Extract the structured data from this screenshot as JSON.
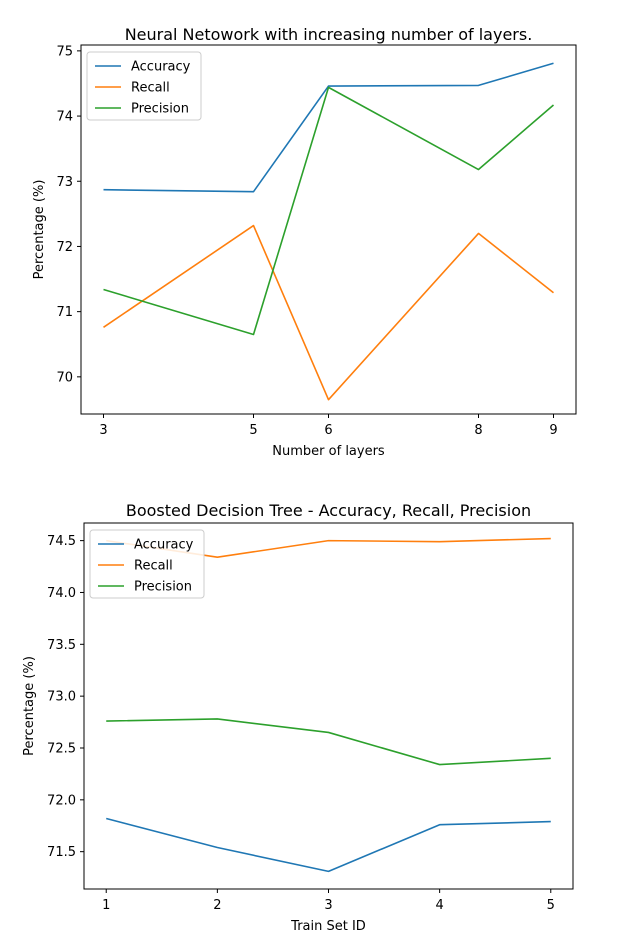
{
  "chart_data": [
    {
      "type": "line",
      "title": "Neural Netowork with increasing number of layers.",
      "xlabel": "Number of layers",
      "ylabel": "Percentage (%)",
      "x": [
        3,
        5,
        6,
        8,
        9
      ],
      "xticks": [
        3,
        5,
        6,
        8,
        9
      ],
      "yticks": [
        70,
        71,
        72,
        73,
        74,
        75
      ],
      "xlim": [
        2.7,
        9.3
      ],
      "ylim": [
        69.43,
        75.09
      ],
      "grid": false,
      "legend_position": "top-left",
      "series": [
        {
          "name": "Accuracy",
          "color": "#1f77b4",
          "values": [
            72.87,
            72.84,
            74.46,
            74.47,
            74.81
          ]
        },
        {
          "name": "Recall",
          "color": "#ff7f0e",
          "values": [
            70.76,
            72.32,
            69.65,
            72.2,
            71.29
          ]
        },
        {
          "name": "Precision",
          "color": "#2ca02c",
          "values": [
            71.34,
            70.65,
            74.44,
            73.18,
            74.17
          ]
        }
      ]
    },
    {
      "type": "line",
      "title": "Boosted Decision Tree - Accuracy, Recall, Precision",
      "xlabel": "Train Set ID",
      "ylabel": "Percentage (%)",
      "x": [
        1,
        2,
        3,
        4,
        5
      ],
      "xticks": [
        1,
        2,
        3,
        4,
        5
      ],
      "yticks": [
        71.5,
        72.0,
        72.5,
        73.0,
        73.5,
        74.0,
        74.5
      ],
      "ytick_labels": [
        "71.5",
        "72.0",
        "72.5",
        "73.0",
        "73.5",
        "74.0",
        "74.5"
      ],
      "xlim": [
        0.8,
        5.2
      ],
      "ylim": [
        71.14,
        74.67
      ],
      "grid": false,
      "legend_position": "top-left",
      "series": [
        {
          "name": "Accuracy",
          "color": "#1f77b4",
          "values": [
            71.82,
            71.54,
            71.31,
            71.76,
            71.79
          ]
        },
        {
          "name": "Recall",
          "color": "#ff7f0e",
          "values": [
            74.5,
            74.34,
            74.5,
            74.49,
            74.52
          ]
        },
        {
          "name": "Precision",
          "color": "#2ca02c",
          "values": [
            72.76,
            72.78,
            72.65,
            72.34,
            72.4
          ]
        }
      ]
    }
  ]
}
